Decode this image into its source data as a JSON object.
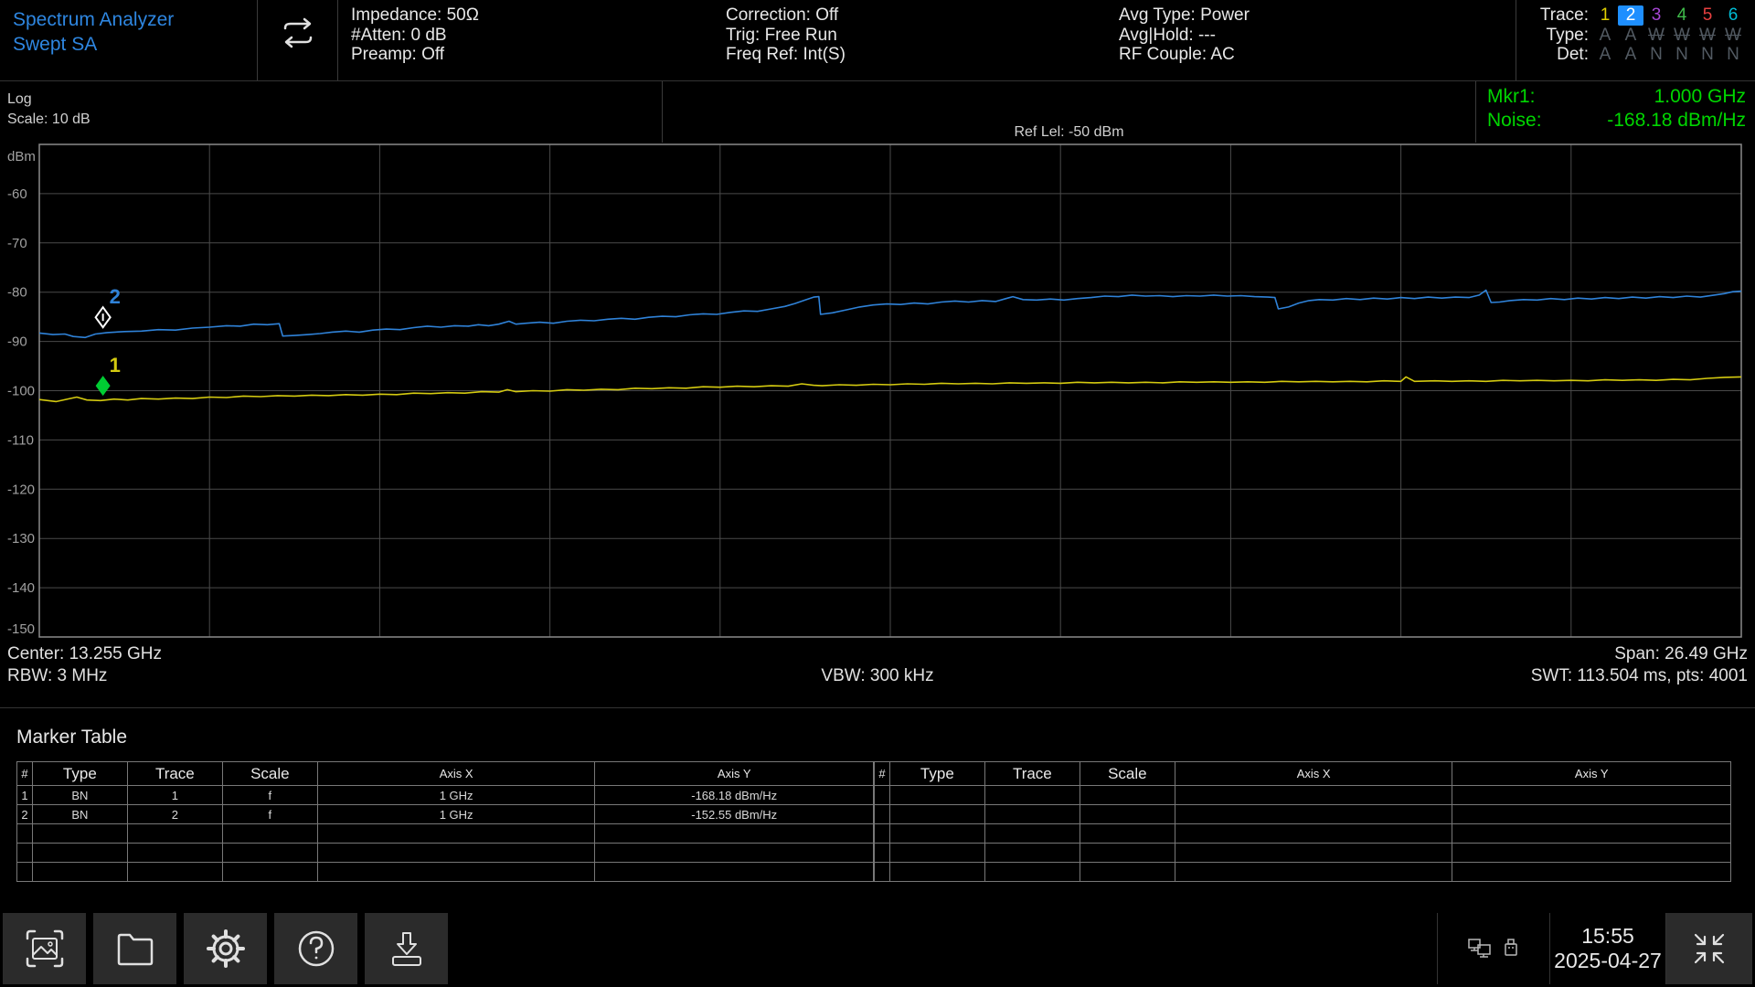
{
  "colors": {
    "accent_blue": "#2e86e0",
    "marker_green_text": "#00d600",
    "grid": "#4a4a4a",
    "plot_border": "#8a8a8a",
    "axis_label": "#a0a0a0",
    "trace1_yellow": "#d4ca10",
    "trace2_blue": "#2f82d8",
    "selected_trace_bg": "#1e8fff"
  },
  "header": {
    "title_line1": "Spectrum Analyzer",
    "title_line2": "Swept SA",
    "sweep_icon": "continuous-sweep-icon",
    "col1": [
      "Impedance: 50Ω",
      "#Atten: 0 dB",
      "Preamp: Off"
    ],
    "col2": [
      "Correction: Off",
      "Trig: Free Run",
      "Freq Ref: Int(S)"
    ],
    "col3": [
      "Avg Type: Power",
      "Avg|Hold: ---",
      "RF Couple: AC"
    ],
    "trace_legend": {
      "trace_label": "Trace:",
      "type_label": "Type:",
      "det_label": "Det:",
      "dim_color": "#525a62",
      "traces": [
        {
          "n": "1",
          "color": "#e0d000",
          "selected": false
        },
        {
          "n": "2",
          "color": "#ffffff",
          "selected": true
        },
        {
          "n": "3",
          "color": "#a646d4",
          "selected": false
        },
        {
          "n": "4",
          "color": "#3fbb4a",
          "selected": false
        },
        {
          "n": "5",
          "color": "#e84040",
          "selected": false
        },
        {
          "n": "6",
          "color": "#00bcd4",
          "selected": false
        }
      ],
      "types": [
        {
          "v": "A",
          "struck": false
        },
        {
          "v": "A",
          "struck": false
        },
        {
          "v": "W",
          "struck": true
        },
        {
          "v": "W",
          "struck": true
        },
        {
          "v": "W",
          "struck": true
        },
        {
          "v": "W",
          "struck": true
        }
      ],
      "dets": [
        "A",
        "A",
        "N",
        "N",
        "N",
        "N"
      ]
    }
  },
  "measbar": {
    "scale_type": "Log",
    "scale": "Scale: 10 dB",
    "ref_level": "Ref Lel: -50 dBm",
    "mkr_label": "Mkr1:",
    "mkr_value": "1.000 GHz",
    "noise_label": "Noise:",
    "noise_value": "-168.18 dBm/Hz"
  },
  "chart_data": {
    "type": "line",
    "y_axis": {
      "unit": "dBm",
      "ref_level_dbm": -50,
      "scale_db_per_div": 10,
      "ticks": [
        -60,
        -70,
        -80,
        -90,
        -100,
        -110,
        -120,
        -130,
        -140,
        -150
      ]
    },
    "x_axis": {
      "center_ghz": 13.255,
      "span_ghz": 26.49,
      "points": 4001
    },
    "grid": {
      "cols": 10,
      "rows": 10
    },
    "traces": [
      {
        "name": "trace-2-blue",
        "color": "#2f82d8",
        "points": [
          [
            0,
            -88.3
          ],
          [
            0.008,
            -88.6
          ],
          [
            0.015,
            -88.5
          ],
          [
            0.02,
            -89.0
          ],
          [
            0.027,
            -89.2
          ],
          [
            0.033,
            -88.5
          ],
          [
            0.04,
            -88.2
          ],
          [
            0.05,
            -88.0
          ],
          [
            0.06,
            -87.9
          ],
          [
            0.07,
            -87.6
          ],
          [
            0.08,
            -87.7
          ],
          [
            0.09,
            -87.3
          ],
          [
            0.1,
            -87.1
          ],
          [
            0.11,
            -86.8
          ],
          [
            0.118,
            -86.9
          ],
          [
            0.126,
            -86.5
          ],
          [
            0.134,
            -86.6
          ],
          [
            0.141,
            -86.4
          ],
          [
            0.143,
            -88.9
          ],
          [
            0.15,
            -88.8
          ],
          [
            0.158,
            -88.6
          ],
          [
            0.165,
            -88.4
          ],
          [
            0.172,
            -88.1
          ],
          [
            0.18,
            -87.9
          ],
          [
            0.188,
            -88.1
          ],
          [
            0.196,
            -87.7
          ],
          [
            0.204,
            -87.5
          ],
          [
            0.212,
            -87.6
          ],
          [
            0.22,
            -87.2
          ],
          [
            0.228,
            -86.9
          ],
          [
            0.236,
            -87.1
          ],
          [
            0.244,
            -86.8
          ],
          [
            0.252,
            -86.9
          ],
          [
            0.258,
            -86.6
          ],
          [
            0.264,
            -86.8
          ],
          [
            0.27,
            -86.5
          ],
          [
            0.276,
            -85.9
          ],
          [
            0.28,
            -86.5
          ],
          [
            0.286,
            -86.3
          ],
          [
            0.294,
            -86.1
          ],
          [
            0.302,
            -86.3
          ],
          [
            0.31,
            -85.9
          ],
          [
            0.318,
            -85.7
          ],
          [
            0.326,
            -85.8
          ],
          [
            0.334,
            -85.5
          ],
          [
            0.342,
            -85.3
          ],
          [
            0.35,
            -85.5
          ],
          [
            0.358,
            -85.1
          ],
          [
            0.366,
            -84.9
          ],
          [
            0.374,
            -85.0
          ],
          [
            0.382,
            -84.6
          ],
          [
            0.39,
            -84.4
          ],
          [
            0.398,
            -84.5
          ],
          [
            0.406,
            -84.1
          ],
          [
            0.414,
            -83.8
          ],
          [
            0.422,
            -83.9
          ],
          [
            0.43,
            -83.4
          ],
          [
            0.438,
            -82.9
          ],
          [
            0.444,
            -82.3
          ],
          [
            0.45,
            -81.6
          ],
          [
            0.455,
            -81.0
          ],
          [
            0.458,
            -80.9
          ],
          [
            0.459,
            -84.5
          ],
          [
            0.466,
            -84.2
          ],
          [
            0.474,
            -83.6
          ],
          [
            0.482,
            -83.0
          ],
          [
            0.49,
            -82.6
          ],
          [
            0.498,
            -82.4
          ],
          [
            0.506,
            -82.5
          ],
          [
            0.514,
            -82.2
          ],
          [
            0.522,
            -82.4
          ],
          [
            0.53,
            -82.0
          ],
          [
            0.538,
            -81.8
          ],
          [
            0.546,
            -82.0
          ],
          [
            0.554,
            -81.7
          ],
          [
            0.562,
            -81.9
          ],
          [
            0.568,
            -81.3
          ],
          [
            0.572,
            -80.9
          ],
          [
            0.578,
            -81.5
          ],
          [
            0.586,
            -81.6
          ],
          [
            0.594,
            -81.4
          ],
          [
            0.602,
            -81.6
          ],
          [
            0.61,
            -81.3
          ],
          [
            0.618,
            -81.1
          ],
          [
            0.626,
            -80.8
          ],
          [
            0.634,
            -80.9
          ],
          [
            0.642,
            -80.6
          ],
          [
            0.65,
            -80.8
          ],
          [
            0.658,
            -80.7
          ],
          [
            0.666,
            -80.9
          ],
          [
            0.674,
            -80.7
          ],
          [
            0.682,
            -80.8
          ],
          [
            0.69,
            -80.6
          ],
          [
            0.698,
            -80.8
          ],
          [
            0.706,
            -80.7
          ],
          [
            0.714,
            -80.9
          ],
          [
            0.722,
            -81.0
          ],
          [
            0.726,
            -81.1
          ],
          [
            0.728,
            -83.4
          ],
          [
            0.734,
            -83.0
          ],
          [
            0.74,
            -82.2
          ],
          [
            0.746,
            -81.7
          ],
          [
            0.752,
            -81.5
          ],
          [
            0.76,
            -81.6
          ],
          [
            0.768,
            -81.3
          ],
          [
            0.776,
            -81.5
          ],
          [
            0.784,
            -81.2
          ],
          [
            0.792,
            -81.4
          ],
          [
            0.8,
            -81.1
          ],
          [
            0.808,
            -81.3
          ],
          [
            0.816,
            -81.0
          ],
          [
            0.824,
            -81.2
          ],
          [
            0.832,
            -81.0
          ],
          [
            0.84,
            -81.1
          ],
          [
            0.846,
            -80.6
          ],
          [
            0.85,
            -79.6
          ],
          [
            0.853,
            -82.1
          ],
          [
            0.858,
            -82.0
          ],
          [
            0.864,
            -81.7
          ],
          [
            0.872,
            -81.5
          ],
          [
            0.88,
            -81.6
          ],
          [
            0.888,
            -81.3
          ],
          [
            0.896,
            -81.5
          ],
          [
            0.904,
            -81.2
          ],
          [
            0.912,
            -81.4
          ],
          [
            0.92,
            -81.1
          ],
          [
            0.928,
            -81.3
          ],
          [
            0.936,
            -81.0
          ],
          [
            0.944,
            -81.2
          ],
          [
            0.952,
            -80.9
          ],
          [
            0.96,
            -81.1
          ],
          [
            0.968,
            -80.8
          ],
          [
            0.976,
            -81.0
          ],
          [
            0.984,
            -80.6
          ],
          [
            0.99,
            -80.3
          ],
          [
            0.995,
            -79.9
          ],
          [
            1,
            -79.8
          ]
        ]
      },
      {
        "name": "trace-1-yellow",
        "color": "#d4ca10",
        "points": [
          [
            0,
            -101.8
          ],
          [
            0.01,
            -102.2
          ],
          [
            0.018,
            -101.6
          ],
          [
            0.022,
            -101.3
          ],
          [
            0.028,
            -101.9
          ],
          [
            0.036,
            -102.0
          ],
          [
            0.044,
            -101.7
          ],
          [
            0.052,
            -101.9
          ],
          [
            0.06,
            -101.6
          ],
          [
            0.07,
            -101.7
          ],
          [
            0.08,
            -101.5
          ],
          [
            0.09,
            -101.6
          ],
          [
            0.1,
            -101.3
          ],
          [
            0.11,
            -101.4
          ],
          [
            0.12,
            -101.1
          ],
          [
            0.13,
            -101.2
          ],
          [
            0.14,
            -101.0
          ],
          [
            0.15,
            -101.1
          ],
          [
            0.16,
            -100.9
          ],
          [
            0.17,
            -101.0
          ],
          [
            0.18,
            -100.8
          ],
          [
            0.19,
            -100.9
          ],
          [
            0.2,
            -100.7
          ],
          [
            0.21,
            -100.8
          ],
          [
            0.22,
            -100.5
          ],
          [
            0.23,
            -100.6
          ],
          [
            0.24,
            -100.4
          ],
          [
            0.25,
            -100.5
          ],
          [
            0.26,
            -100.2
          ],
          [
            0.27,
            -100.3
          ],
          [
            0.275,
            -99.8
          ],
          [
            0.28,
            -100.2
          ],
          [
            0.29,
            -100.0
          ],
          [
            0.3,
            -100.1
          ],
          [
            0.31,
            -99.8
          ],
          [
            0.32,
            -99.9
          ],
          [
            0.33,
            -99.7
          ],
          [
            0.34,
            -99.8
          ],
          [
            0.35,
            -99.5
          ],
          [
            0.36,
            -99.6
          ],
          [
            0.37,
            -99.4
          ],
          [
            0.38,
            -99.5
          ],
          [
            0.39,
            -99.2
          ],
          [
            0.4,
            -99.3
          ],
          [
            0.41,
            -99.1
          ],
          [
            0.42,
            -99.2
          ],
          [
            0.43,
            -99.0
          ],
          [
            0.44,
            -99.1
          ],
          [
            0.448,
            -98.6
          ],
          [
            0.455,
            -98.9
          ],
          [
            0.46,
            -99.0
          ],
          [
            0.47,
            -98.8
          ],
          [
            0.48,
            -98.9
          ],
          [
            0.49,
            -98.7
          ],
          [
            0.5,
            -98.8
          ],
          [
            0.51,
            -98.6
          ],
          [
            0.52,
            -98.7
          ],
          [
            0.53,
            -98.5
          ],
          [
            0.54,
            -98.6
          ],
          [
            0.55,
            -98.5
          ],
          [
            0.56,
            -98.6
          ],
          [
            0.57,
            -98.4
          ],
          [
            0.58,
            -98.5
          ],
          [
            0.59,
            -98.4
          ],
          [
            0.6,
            -98.5
          ],
          [
            0.61,
            -98.3
          ],
          [
            0.62,
            -98.4
          ],
          [
            0.63,
            -98.3
          ],
          [
            0.64,
            -98.4
          ],
          [
            0.65,
            -98.3
          ],
          [
            0.66,
            -98.4
          ],
          [
            0.67,
            -98.2
          ],
          [
            0.68,
            -98.3
          ],
          [
            0.69,
            -98.2
          ],
          [
            0.7,
            -98.3
          ],
          [
            0.71,
            -98.2
          ],
          [
            0.72,
            -98.3
          ],
          [
            0.73,
            -98.1
          ],
          [
            0.74,
            -98.2
          ],
          [
            0.75,
            -98.1
          ],
          [
            0.76,
            -98.2
          ],
          [
            0.77,
            -98.1
          ],
          [
            0.78,
            -98.2
          ],
          [
            0.79,
            -98.0
          ],
          [
            0.8,
            -98.1
          ],
          [
            0.803,
            -97.2
          ],
          [
            0.808,
            -98.1
          ],
          [
            0.82,
            -98.0
          ],
          [
            0.83,
            -98.1
          ],
          [
            0.84,
            -98.0
          ],
          [
            0.85,
            -98.1
          ],
          [
            0.86,
            -97.9
          ],
          [
            0.87,
            -98.0
          ],
          [
            0.88,
            -97.9
          ],
          [
            0.89,
            -98.0
          ],
          [
            0.9,
            -97.9
          ],
          [
            0.91,
            -98.0
          ],
          [
            0.92,
            -97.8
          ],
          [
            0.93,
            -97.9
          ],
          [
            0.94,
            -97.8
          ],
          [
            0.95,
            -97.9
          ],
          [
            0.96,
            -97.7
          ],
          [
            0.97,
            -97.8
          ],
          [
            0.98,
            -97.5
          ],
          [
            0.99,
            -97.3
          ],
          [
            1,
            -97.2
          ]
        ]
      }
    ],
    "markers": [
      {
        "n": "1",
        "x_frac": 0.0374,
        "dbm": -99.0,
        "style": "filled",
        "color": "#00cc33",
        "label_color": "#d4ca10"
      },
      {
        "n": "2",
        "x_frac": 0.0374,
        "dbm": -85.1,
        "style": "hollow",
        "color": "#ffffff",
        "label_color": "#2f82d8"
      }
    ]
  },
  "footer": {
    "center_freq": "Center: 13.255 GHz",
    "rbw": "RBW: 3 MHz",
    "vbw": "VBW: 300 kHz",
    "span": "Span: 26.49 GHz",
    "swt": "SWT: 113.504 ms, pts: 4001"
  },
  "marker_table": {
    "title": "Marker Table",
    "headers": [
      "#",
      "Type",
      "Trace",
      "Scale",
      "Axis X",
      "Axis Y"
    ],
    "rows_left": [
      [
        "1",
        "BN",
        "1",
        "f",
        "1 GHz",
        "-168.18 dBm/Hz"
      ],
      [
        "2",
        "BN",
        "2",
        "f",
        "1 GHz",
        "-152.55 dBm/Hz"
      ],
      [
        "",
        "",
        "",
        "",
        "",
        ""
      ],
      [
        "",
        "",
        "",
        "",
        "",
        ""
      ],
      [
        "",
        "",
        "",
        "",
        "",
        ""
      ]
    ],
    "rows_right": [
      [
        "",
        "",
        "",
        "",
        "",
        ""
      ],
      [
        "",
        "",
        "",
        "",
        "",
        ""
      ],
      [
        "",
        "",
        "",
        "",
        "",
        ""
      ],
      [
        "",
        "",
        "",
        "",
        "",
        ""
      ],
      [
        "",
        "",
        "",
        "",
        "",
        ""
      ]
    ]
  },
  "taskbar": {
    "buttons": [
      {
        "icon": "screenshot-icon"
      },
      {
        "icon": "folder-icon"
      },
      {
        "icon": "settings-gear-icon"
      },
      {
        "icon": "help-icon"
      },
      {
        "icon": "save-icon"
      }
    ],
    "status_icons": [
      "network-computers-icon",
      "usb-drive-icon"
    ],
    "time": "15:55",
    "date": "2025-04-27",
    "expand_icon": "collapse-arrows-icon"
  }
}
